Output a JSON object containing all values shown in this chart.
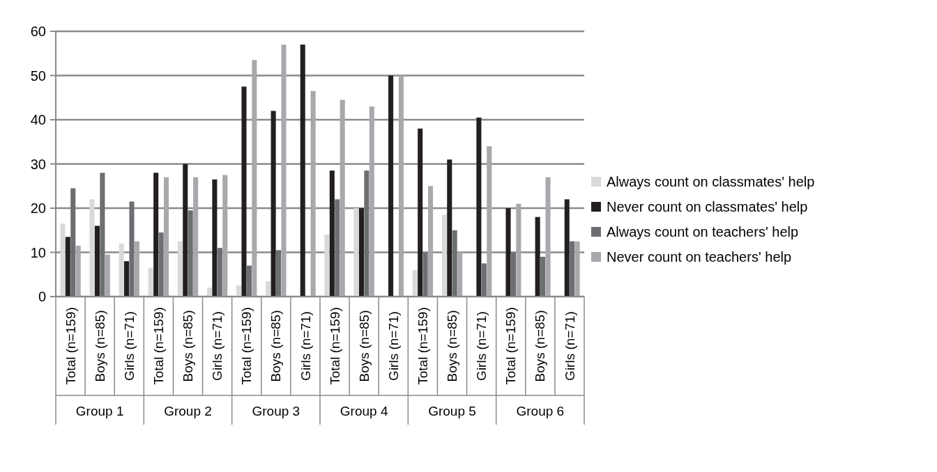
{
  "chart_data": {
    "type": "bar",
    "categories": [
      "Total (n=159)",
      "Boys (n=85)",
      "Girls (n=71)",
      "Total (n=159)",
      "Boys (n=85)",
      "Girls (n=71)",
      "Total (n=159)",
      "Boys (n=85)",
      "Girls (n=71)",
      "Total (n=159)",
      "Boys (n=85)",
      "Girls (n=71)",
      "Total (n=159)",
      "Boys (n=85)",
      "Girls (n=71)",
      "Total (n=159)",
      "Boys (n=85)",
      "Girls (n=71)"
    ],
    "series": [
      {
        "name": "Always count on classmates' help",
        "color": "#d9d9d9",
        "values": [
          16.5,
          22,
          12,
          6.5,
          12.5,
          2,
          2.5,
          3.5,
          0,
          14,
          20,
          0,
          6,
          18.5,
          0,
          0,
          0,
          0
        ]
      },
      {
        "name": "Never count on classmates' help",
        "color": "#231f20",
        "values": [
          13.5,
          16,
          8,
          28,
          30,
          26.5,
          47.5,
          42,
          57,
          28.5,
          20,
          50,
          38,
          31,
          40.5,
          20,
          18,
          22
        ]
      },
      {
        "name": "Always count on teachers' help",
        "color": "#6d6e71",
        "values": [
          24.5,
          28,
          21.5,
          14.5,
          19.5,
          11,
          7,
          10.5,
          0,
          22,
          28.5,
          0,
          10,
          15,
          7.5,
          10,
          9,
          12.5
        ]
      },
      {
        "name": "Never count on teachers' help",
        "color": "#a7a9ac",
        "values": [
          11.5,
          9.5,
          12.5,
          27,
          27,
          27.5,
          53.5,
          57,
          46.5,
          44.5,
          43,
          50,
          25,
          10,
          34,
          21,
          27,
          12.5
        ]
      }
    ],
    "annotations": [
      "Group 1",
      "Group 2",
      "Group 3",
      "Group 4",
      "Group 5",
      "Group 6"
    ],
    "ylim": [
      0,
      60
    ],
    "yticks": [
      0,
      10,
      20,
      30,
      40,
      50,
      60
    ],
    "grid": "y",
    "legend": "right"
  }
}
